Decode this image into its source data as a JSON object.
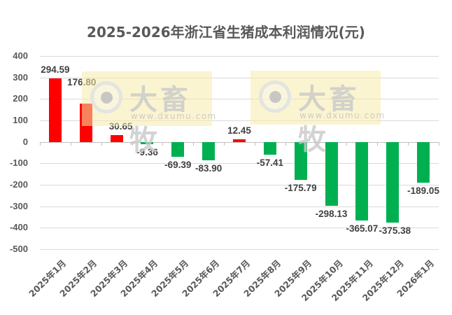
{
  "chart_data": {
    "type": "bar",
    "title": "2025-2026年浙江省生猪成本利润情况(元)",
    "xlabel": "",
    "ylabel": "",
    "ylim": [
      -500,
      400
    ],
    "yticks": [
      400,
      300,
      200,
      100,
      0,
      -100,
      -200,
      -300,
      -400,
      -500
    ],
    "grid": true,
    "legend": null,
    "categories": [
      "2025年1月",
      "2025年2月",
      "2025年3月",
      "2025年4月",
      "2025年5月",
      "2025年6月",
      "2025年7月",
      "2025年8月",
      "2025年9月",
      "2025年10月",
      "2025年11月",
      "2025年12月",
      "2026年1月"
    ],
    "values": [
      294.59,
      176.8,
      30.65,
      -9.36,
      -69.39,
      -83.9,
      12.45,
      -57.41,
      -175.79,
      -298.13,
      -365.07,
      -375.38,
      -189.05
    ],
    "data_labels": [
      "294.59",
      "176.80",
      "30.65",
      "-9.36",
      "-69.39",
      "-83.90",
      "12.45",
      "-57.41",
      "-175.79",
      "-298.13",
      "-365.07",
      "-375.38",
      "-189.05"
    ],
    "colors": {
      "positive": "#ff0000",
      "negative": "#00b050"
    }
  },
  "watermark": {
    "brand": "大畜牧",
    "url": "www.dxumu.com"
  }
}
